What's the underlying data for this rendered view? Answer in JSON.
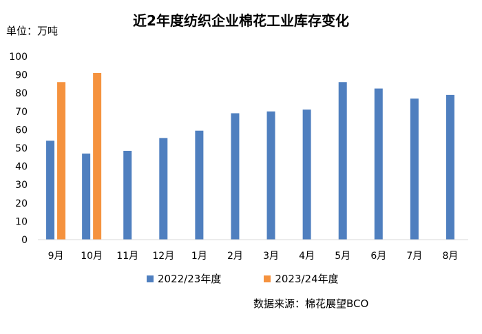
{
  "chart_data": {
    "type": "bar",
    "title": "近2年度纺织企业棉花工业库存变化",
    "unit": "单位：万吨",
    "categories": [
      "9月",
      "10月",
      "11月",
      "12月",
      "1月",
      "2月",
      "3月",
      "4月",
      "5月",
      "6月",
      "7月",
      "8月"
    ],
    "series": [
      {
        "name": "2022/23年度",
        "color": "#4f7fbf",
        "values": [
          54,
          47,
          48.5,
          55.5,
          59.5,
          69,
          70,
          71,
          86,
          82.5,
          77,
          79
        ]
      },
      {
        "name": "2023/24年度",
        "color": "#f5923e",
        "values": [
          86,
          91,
          null,
          null,
          null,
          null,
          null,
          null,
          null,
          null,
          null,
          null
        ]
      }
    ],
    "ylim": [
      0,
      100
    ],
    "yticks": [
      0,
      10,
      20,
      30,
      40,
      50,
      60,
      70,
      80,
      90,
      100
    ],
    "grid": false,
    "legend_position": "bottom",
    "source": "数据来源：棉花展望BCO"
  }
}
